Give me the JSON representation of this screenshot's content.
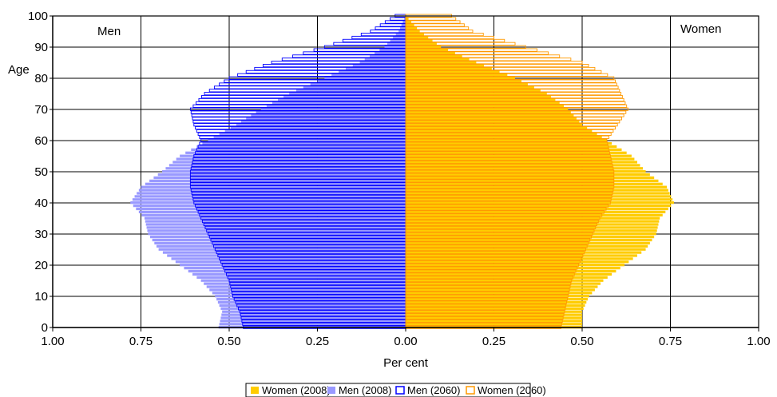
{
  "chart_data": {
    "type": "bar",
    "orientation": "horizontal",
    "layout": "population-pyramid",
    "xlabel": "Per cent",
    "ylabel": "Age",
    "left_label": "Men",
    "right_label": "Women",
    "xlim": [
      -1.0,
      1.0
    ],
    "ylim": [
      0,
      100
    ],
    "x_ticks": [
      -1.0,
      -0.75,
      -0.5,
      -0.25,
      0.0,
      0.25,
      0.5,
      0.75,
      1.0
    ],
    "x_tick_labels": [
      "1.00",
      "0.75",
      "0.50",
      "0.25",
      "0.00",
      "0.25",
      "0.50",
      "0.75",
      "1.00"
    ],
    "y_ticks": [
      0,
      10,
      20,
      30,
      40,
      50,
      60,
      70,
      80,
      90,
      100
    ],
    "y_tick_labels": [
      "0",
      "10",
      "20",
      "30",
      "40",
      "50",
      "60",
      "70",
      "80",
      "90",
      "100"
    ],
    "grid": true,
    "legend_position": "bottom",
    "age_profile_note": "",
    "series": [
      {
        "name": "Women (2008)",
        "side": "right",
        "style": "filled",
        "color": "#FFCC00",
        "ages": [
          0,
          5,
          10,
          15,
          20,
          25,
          30,
          35,
          40,
          45,
          50,
          55,
          60,
          65,
          70,
          75,
          80,
          85,
          90,
          95,
          100
        ],
        "values": [
          0.5,
          0.5,
          0.52,
          0.56,
          0.62,
          0.68,
          0.71,
          0.72,
          0.76,
          0.74,
          0.68,
          0.64,
          0.57,
          0.5,
          0.46,
          0.4,
          0.31,
          0.2,
          0.1,
          0.04,
          0.0
        ]
      },
      {
        "name": "Men (2008)",
        "side": "left",
        "style": "filled",
        "color": "#9999FF",
        "ages": [
          0,
          5,
          10,
          15,
          20,
          25,
          30,
          35,
          40,
          45,
          50,
          55,
          60,
          65,
          70,
          75,
          80,
          85,
          90,
          95,
          100
        ],
        "values": [
          0.53,
          0.52,
          0.54,
          0.58,
          0.64,
          0.7,
          0.73,
          0.74,
          0.78,
          0.75,
          0.69,
          0.64,
          0.56,
          0.48,
          0.41,
          0.33,
          0.23,
          0.13,
          0.06,
          0.02,
          0.0
        ]
      },
      {
        "name": "Men (2060)",
        "side": "left",
        "style": "outline",
        "color": "#0000FF",
        "ages": [
          0,
          5,
          10,
          15,
          20,
          25,
          30,
          35,
          40,
          45,
          50,
          55,
          60,
          65,
          70,
          75,
          80,
          85,
          90,
          95,
          100
        ],
        "values": [
          0.46,
          0.47,
          0.49,
          0.5,
          0.52,
          0.54,
          0.56,
          0.58,
          0.6,
          0.61,
          0.61,
          0.6,
          0.58,
          0.6,
          0.61,
          0.57,
          0.5,
          0.38,
          0.23,
          0.1,
          0.03
        ]
      },
      {
        "name": "Women (2060)",
        "side": "right",
        "style": "outline",
        "color": "#FF9900",
        "ages": [
          0,
          5,
          10,
          15,
          20,
          25,
          30,
          35,
          40,
          45,
          50,
          55,
          60,
          65,
          70,
          75,
          80,
          85,
          90,
          95,
          100
        ],
        "values": [
          0.44,
          0.45,
          0.46,
          0.47,
          0.49,
          0.51,
          0.53,
          0.55,
          0.58,
          0.59,
          0.59,
          0.58,
          0.57,
          0.6,
          0.63,
          0.61,
          0.59,
          0.5,
          0.34,
          0.19,
          0.13
        ]
      }
    ]
  }
}
